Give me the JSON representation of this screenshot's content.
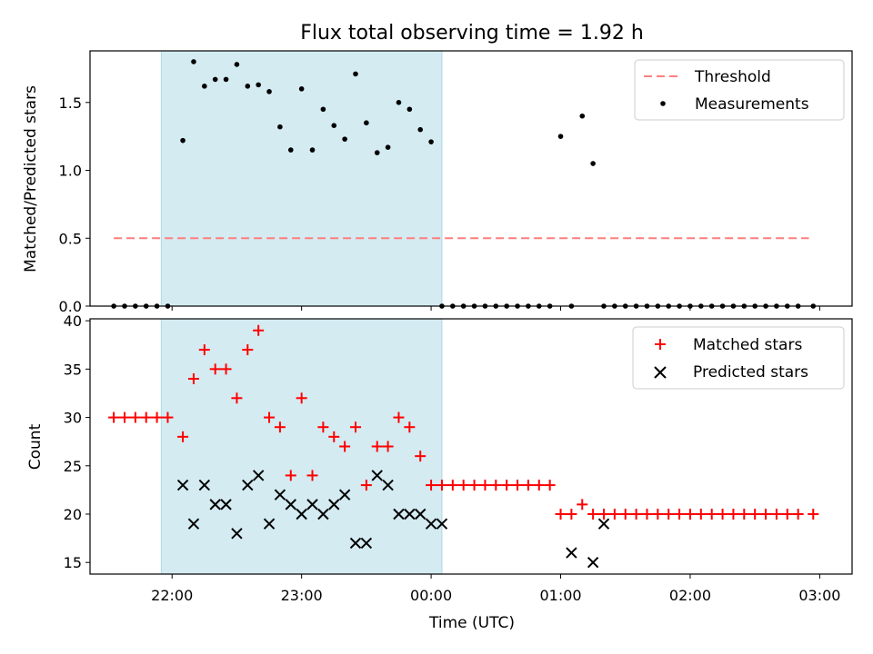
{
  "chart_data": [
    {
      "type": "scatter",
      "title": "Flux total observing time = 1.92 h",
      "ylabel": "Matched/Predicted stars",
      "xlabel": "",
      "xlim": [
        "21:22",
        "03:15"
      ],
      "ylim": [
        0,
        1.88
      ],
      "yticks": [
        0.0,
        0.5,
        1.0,
        1.5
      ],
      "ytick_labels": [
        "0.0",
        "0.5",
        "1.0",
        "1.5"
      ],
      "shaded_interval": [
        "21:55",
        "00:05"
      ],
      "legend_position": "upper right",
      "series": [
        {
          "name": "Threshold",
          "style": "dashed-line",
          "color": "#ff7f7f",
          "x": [
            "21:33",
            "02:55"
          ],
          "y": [
            0.5,
            0.5
          ]
        },
        {
          "name": "Measurements",
          "style": "dots",
          "color": "#000000",
          "x": [
            "21:33",
            "21:38",
            "21:43",
            "21:48",
            "21:53",
            "21:58",
            "22:05",
            "22:10",
            "22:15",
            "22:20",
            "22:25",
            "22:30",
            "22:35",
            "22:40",
            "22:45",
            "22:50",
            "22:55",
            "23:00",
            "23:05",
            "23:10",
            "23:15",
            "23:20",
            "23:25",
            "23:30",
            "23:35",
            "23:40",
            "23:45",
            "23:50",
            "23:55",
            "00:00",
            "00:05",
            "00:10",
            "00:15",
            "00:20",
            "00:25",
            "00:30",
            "00:35",
            "00:40",
            "00:45",
            "00:50",
            "00:55",
            "01:00",
            "01:05",
            "01:10",
            "01:15",
            "01:20",
            "01:25",
            "01:30",
            "01:35",
            "01:40",
            "01:45",
            "01:50",
            "01:55",
            "02:00",
            "02:05",
            "02:10",
            "02:15",
            "02:20",
            "02:25",
            "02:30",
            "02:35",
            "02:40",
            "02:45",
            "02:50",
            "02:57"
          ],
          "y": [
            0,
            0,
            0,
            0,
            0,
            0,
            1.22,
            1.8,
            1.62,
            1.67,
            1.67,
            1.78,
            1.62,
            1.63,
            1.58,
            1.32,
            1.15,
            1.6,
            1.15,
            1.45,
            1.33,
            1.23,
            1.71,
            1.35,
            1.13,
            1.17,
            1.5,
            1.45,
            1.3,
            1.21,
            0,
            0,
            0,
            0,
            0,
            0,
            0,
            0,
            0,
            0,
            0,
            1.25,
            0,
            1.4,
            1.05,
            0,
            0,
            0,
            0,
            0,
            0,
            0,
            0,
            0,
            0,
            0,
            0,
            0,
            0,
            0,
            0,
            0,
            0,
            0,
            0
          ]
        }
      ]
    },
    {
      "type": "scatter",
      "title": "",
      "ylabel": "Count",
      "xlabel": "Time (UTC)",
      "xlim": [
        "21:22",
        "03:15"
      ],
      "ylim": [
        13.8,
        40.2
      ],
      "yticks": [
        15,
        20,
        25,
        30,
        35,
        40
      ],
      "ytick_labels": [
        "15",
        "20",
        "25",
        "30",
        "35",
        "40"
      ],
      "xticks": [
        "22:00",
        "23:00",
        "00:00",
        "01:00",
        "02:00",
        "03:00"
      ],
      "xtick_labels": [
        "22:00",
        "23:00",
        "00:00",
        "01:00",
        "02:00",
        "03:00"
      ],
      "shaded_interval": [
        "21:55",
        "00:05"
      ],
      "legend_position": "upper right",
      "series": [
        {
          "name": "Matched stars",
          "marker": "plus",
          "color": "#ff0000",
          "x": [
            "21:33",
            "21:38",
            "21:43",
            "21:48",
            "21:53",
            "21:58",
            "22:05",
            "22:10",
            "22:15",
            "22:20",
            "22:25",
            "22:30",
            "22:35",
            "22:40",
            "22:45",
            "22:50",
            "22:55",
            "23:00",
            "23:05",
            "23:10",
            "23:15",
            "23:20",
            "23:25",
            "23:30",
            "23:35",
            "23:40",
            "23:45",
            "23:50",
            "23:55",
            "00:00",
            "00:05",
            "00:10",
            "00:15",
            "00:20",
            "00:25",
            "00:30",
            "00:35",
            "00:40",
            "00:45",
            "00:50",
            "00:55",
            "01:00",
            "01:05",
            "01:10",
            "01:15",
            "01:20",
            "01:25",
            "01:30",
            "01:35",
            "01:40",
            "01:45",
            "01:50",
            "01:55",
            "02:00",
            "02:05",
            "02:10",
            "02:15",
            "02:20",
            "02:25",
            "02:30",
            "02:35",
            "02:40",
            "02:45",
            "02:50",
            "02:57"
          ],
          "y": [
            30,
            30,
            30,
            30,
            30,
            30,
            28,
            34,
            37,
            35,
            35,
            32,
            37,
            39,
            30,
            29,
            24,
            32,
            24,
            29,
            28,
            27,
            29,
            23,
            27,
            27,
            30,
            29,
            26,
            23,
            23,
            23,
            23,
            23,
            23,
            23,
            23,
            23,
            23,
            23,
            23,
            20,
            20,
            21,
            20,
            20,
            20,
            20,
            20,
            20,
            20,
            20,
            20,
            20,
            20,
            20,
            20,
            20,
            20,
            20,
            20,
            20,
            20,
            20,
            20
          ]
        },
        {
          "name": "Predicted stars",
          "marker": "x",
          "color": "#000000",
          "x": [
            "22:05",
            "22:10",
            "22:15",
            "22:20",
            "22:25",
            "22:30",
            "22:35",
            "22:40",
            "22:45",
            "22:50",
            "22:55",
            "23:00",
            "23:05",
            "23:10",
            "23:15",
            "23:20",
            "23:25",
            "23:30",
            "23:35",
            "23:40",
            "23:45",
            "23:50",
            "23:55",
            "00:00",
            "00:05",
            "01:05",
            "01:15",
            "01:20"
          ],
          "y": [
            23,
            19,
            23,
            21,
            21,
            18,
            23,
            24,
            19,
            22,
            21,
            20,
            21,
            20,
            21,
            22,
            17,
            17,
            24,
            23,
            20,
            20,
            20,
            19,
            19,
            16,
            15,
            19
          ]
        }
      ]
    }
  ]
}
